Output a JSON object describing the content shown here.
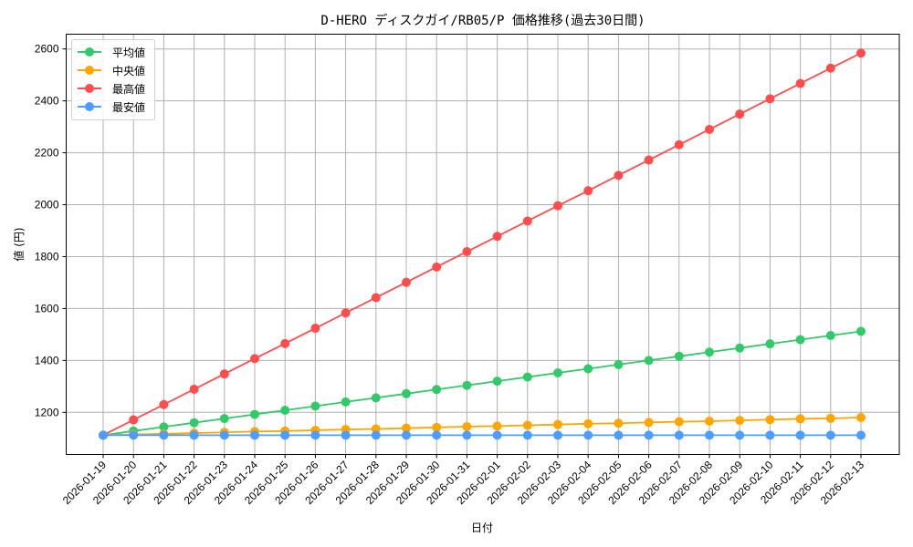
{
  "chart_data": {
    "type": "line",
    "title": "D-HERO ディスクガイ/RB05/P 価格推移(過去30日間)",
    "xlabel": "日付",
    "ylabel": "値 (円)",
    "ylim": [
      1060,
      2650
    ],
    "yticks": [
      1200,
      1400,
      1600,
      1800,
      2000,
      2200,
      2400,
      2600
    ],
    "grid": true,
    "legend_position": "upper left",
    "x": [
      "2026-01-19",
      "2026-01-20",
      "2026-01-21",
      "2026-01-22",
      "2026-01-23",
      "2026-01-24",
      "2026-01-25",
      "2026-01-26",
      "2026-01-27",
      "2026-01-28",
      "2026-01-29",
      "2026-01-30",
      "2026-01-31",
      "2026-02-01",
      "2026-02-02",
      "2026-02-03",
      "2026-02-04",
      "2026-02-05",
      "2026-02-06",
      "2026-02-07",
      "2026-02-08",
      "2026-02-09",
      "2026-02-10",
      "2026-02-11",
      "2026-02-12",
      "2026-02-13"
    ],
    "series": [
      {
        "name": "平均値",
        "color": "#33c96a",
        "values": [
          1112,
          1128,
          1144,
          1160,
          1176,
          1192,
          1208,
          1224,
          1240,
          1256,
          1272,
          1288,
          1304,
          1320,
          1336,
          1352,
          1368,
          1384,
          1400,
          1416,
          1432,
          1448,
          1464,
          1480,
          1496,
          1512
        ]
      },
      {
        "name": "中央値",
        "color": "#ffa500",
        "values": [
          1112,
          1115,
          1117,
          1120,
          1123,
          1126,
          1128,
          1131,
          1134,
          1136,
          1139,
          1142,
          1145,
          1147,
          1150,
          1153,
          1156,
          1158,
          1161,
          1164,
          1166,
          1169,
          1172,
          1175,
          1177,
          1180
        ]
      },
      {
        "name": "最高値",
        "color": "#ff4d4d",
        "values": [
          1112,
          1171,
          1230,
          1289,
          1348,
          1407,
          1465,
          1524,
          1583,
          1642,
          1701,
          1760,
          1819,
          1878,
          1937,
          1996,
          2054,
          2113,
          2172,
          2231,
          2290,
          2349,
          2408,
          2467,
          2526,
          2584
        ]
      },
      {
        "name": "最安値",
        "color": "#4d9dff",
        "values": [
          1112,
          1112,
          1112,
          1112,
          1112,
          1112,
          1112,
          1112,
          1112,
          1112,
          1112,
          1112,
          1112,
          1112,
          1112,
          1112,
          1112,
          1112,
          1112,
          1112,
          1112,
          1112,
          1112,
          1112,
          1112,
          1112
        ]
      }
    ]
  }
}
